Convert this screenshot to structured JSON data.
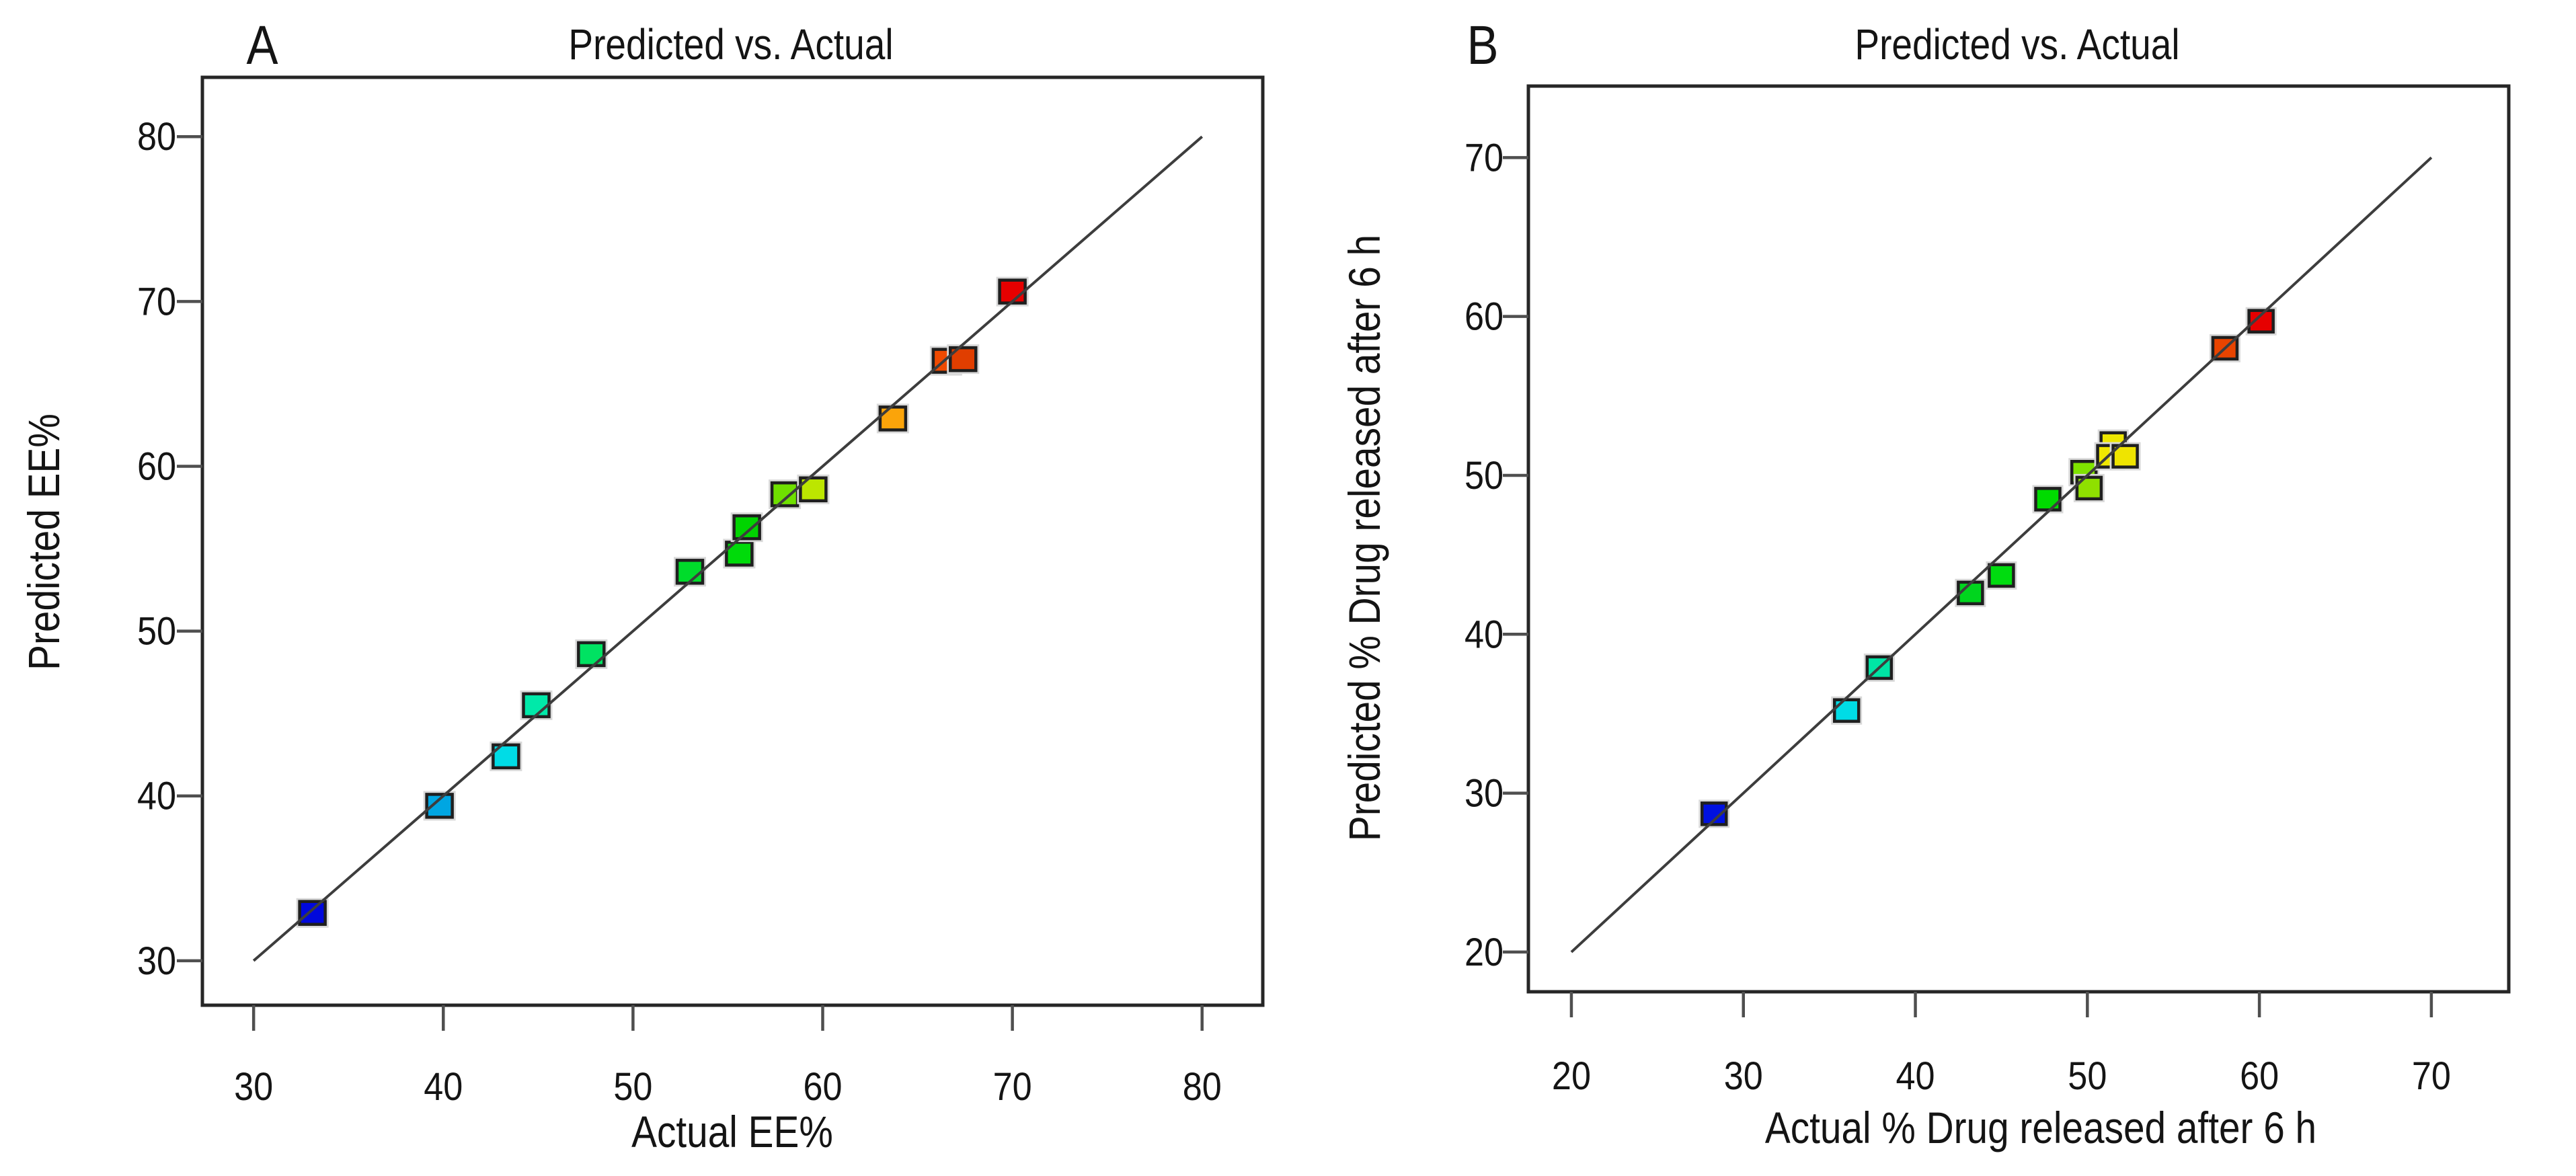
{
  "chart_data": [
    {
      "type": "scatter",
      "panel_label": "A",
      "title": "Predicted vs. Actual",
      "xlabel": "Actual EE%",
      "ylabel": "Predicted EE%",
      "xlim": [
        27.3,
        83.2
      ],
      "ylim": [
        27.3,
        83.6
      ],
      "xticks": [
        30,
        40,
        50,
        60,
        70,
        80
      ],
      "yticks": [
        30,
        40,
        50,
        60,
        70,
        80
      ],
      "grid": false,
      "legend": "none",
      "marker": "square",
      "identity_line": {
        "x1": 30,
        "y1": 30,
        "x2": 80,
        "y2": 80
      },
      "points": [
        {
          "actual": 33.1,
          "predicted": 32.9,
          "color": "#0008DC"
        },
        {
          "actual": 39.8,
          "predicted": 39.4,
          "color": "#00A6E2"
        },
        {
          "actual": 43.3,
          "predicted": 42.4,
          "color": "#00DCE6"
        },
        {
          "actual": 44.9,
          "predicted": 45.5,
          "color": "#00E9A9"
        },
        {
          "actual": 47.8,
          "predicted": 48.6,
          "color": "#00E262"
        },
        {
          "actual": 53.0,
          "predicted": 53.6,
          "color": "#00DC2B"
        },
        {
          "actual": 55.6,
          "predicted": 54.7,
          "color": "#00DB0A"
        },
        {
          "actual": 56.0,
          "predicted": 56.3,
          "color": "#00D400"
        },
        {
          "actual": 58.0,
          "predicted": 58.3,
          "color": "#6FE000"
        },
        {
          "actual": 59.5,
          "predicted": 58.6,
          "color": "#BCE600"
        },
        {
          "actual": 63.7,
          "predicted": 62.9,
          "color": "#FBA40A"
        },
        {
          "actual": 66.5,
          "predicted": 66.4,
          "color": "#F04A00"
        },
        {
          "actual": 67.4,
          "predicted": 66.5,
          "color": "#E03E00"
        },
        {
          "actual": 70.0,
          "predicted": 70.6,
          "color": "#E60000"
        }
      ]
    },
    {
      "type": "scatter",
      "panel_label": "B",
      "title": "Predicted vs. Actual",
      "xlabel": "Actual % Drug released after 6 h",
      "ylabel": "Predicted % Drug released after 6 h",
      "xlim": [
        17.5,
        74.5
      ],
      "ylim": [
        17.5,
        74.5
      ],
      "xticks": [
        20,
        30,
        40,
        50,
        60,
        70
      ],
      "yticks": [
        20,
        30,
        40,
        50,
        60,
        70
      ],
      "grid": false,
      "legend": "none",
      "marker": "square",
      "identity_line": {
        "x1": 20,
        "y1": 20,
        "x2": 70,
        "y2": 70
      },
      "points": [
        {
          "actual": 28.3,
          "predicted": 28.7,
          "color": "#0011E0"
        },
        {
          "actual": 36.0,
          "predicted": 35.2,
          "color": "#00DCE6"
        },
        {
          "actual": 37.9,
          "predicted": 37.9,
          "color": "#00E5A5"
        },
        {
          "actual": 43.2,
          "predicted": 42.6,
          "color": "#00D51E"
        },
        {
          "actual": 45.0,
          "predicted": 43.7,
          "color": "#00DC0F"
        },
        {
          "actual": 47.7,
          "predicted": 48.5,
          "color": "#00DB00"
        },
        {
          "actual": 49.8,
          "predicted": 50.2,
          "color": "#7FE400"
        },
        {
          "actual": 50.1,
          "predicted": 49.2,
          "color": "#8FE000"
        },
        {
          "actual": 51.5,
          "predicted": 52.0,
          "color": "#EDE600"
        },
        {
          "actual": 51.3,
          "predicted": 51.2,
          "color": "#F0E800"
        },
        {
          "actual": 52.2,
          "predicted": 51.2,
          "color": "#EFE400"
        },
        {
          "actual": 58.0,
          "predicted": 58.0,
          "color": "#E84400"
        },
        {
          "actual": 60.1,
          "predicted": 59.7,
          "color": "#E60000"
        }
      ]
    }
  ],
  "styles": {
    "background": "#ffffff",
    "axis_color": "#262626",
    "tick_color": "#4f4f4f",
    "text_color": "#141414",
    "line_color": "#3d3d3d",
    "marker_stroke": "#1f1f1f",
    "marker_halo": "#d9d9d9"
  }
}
